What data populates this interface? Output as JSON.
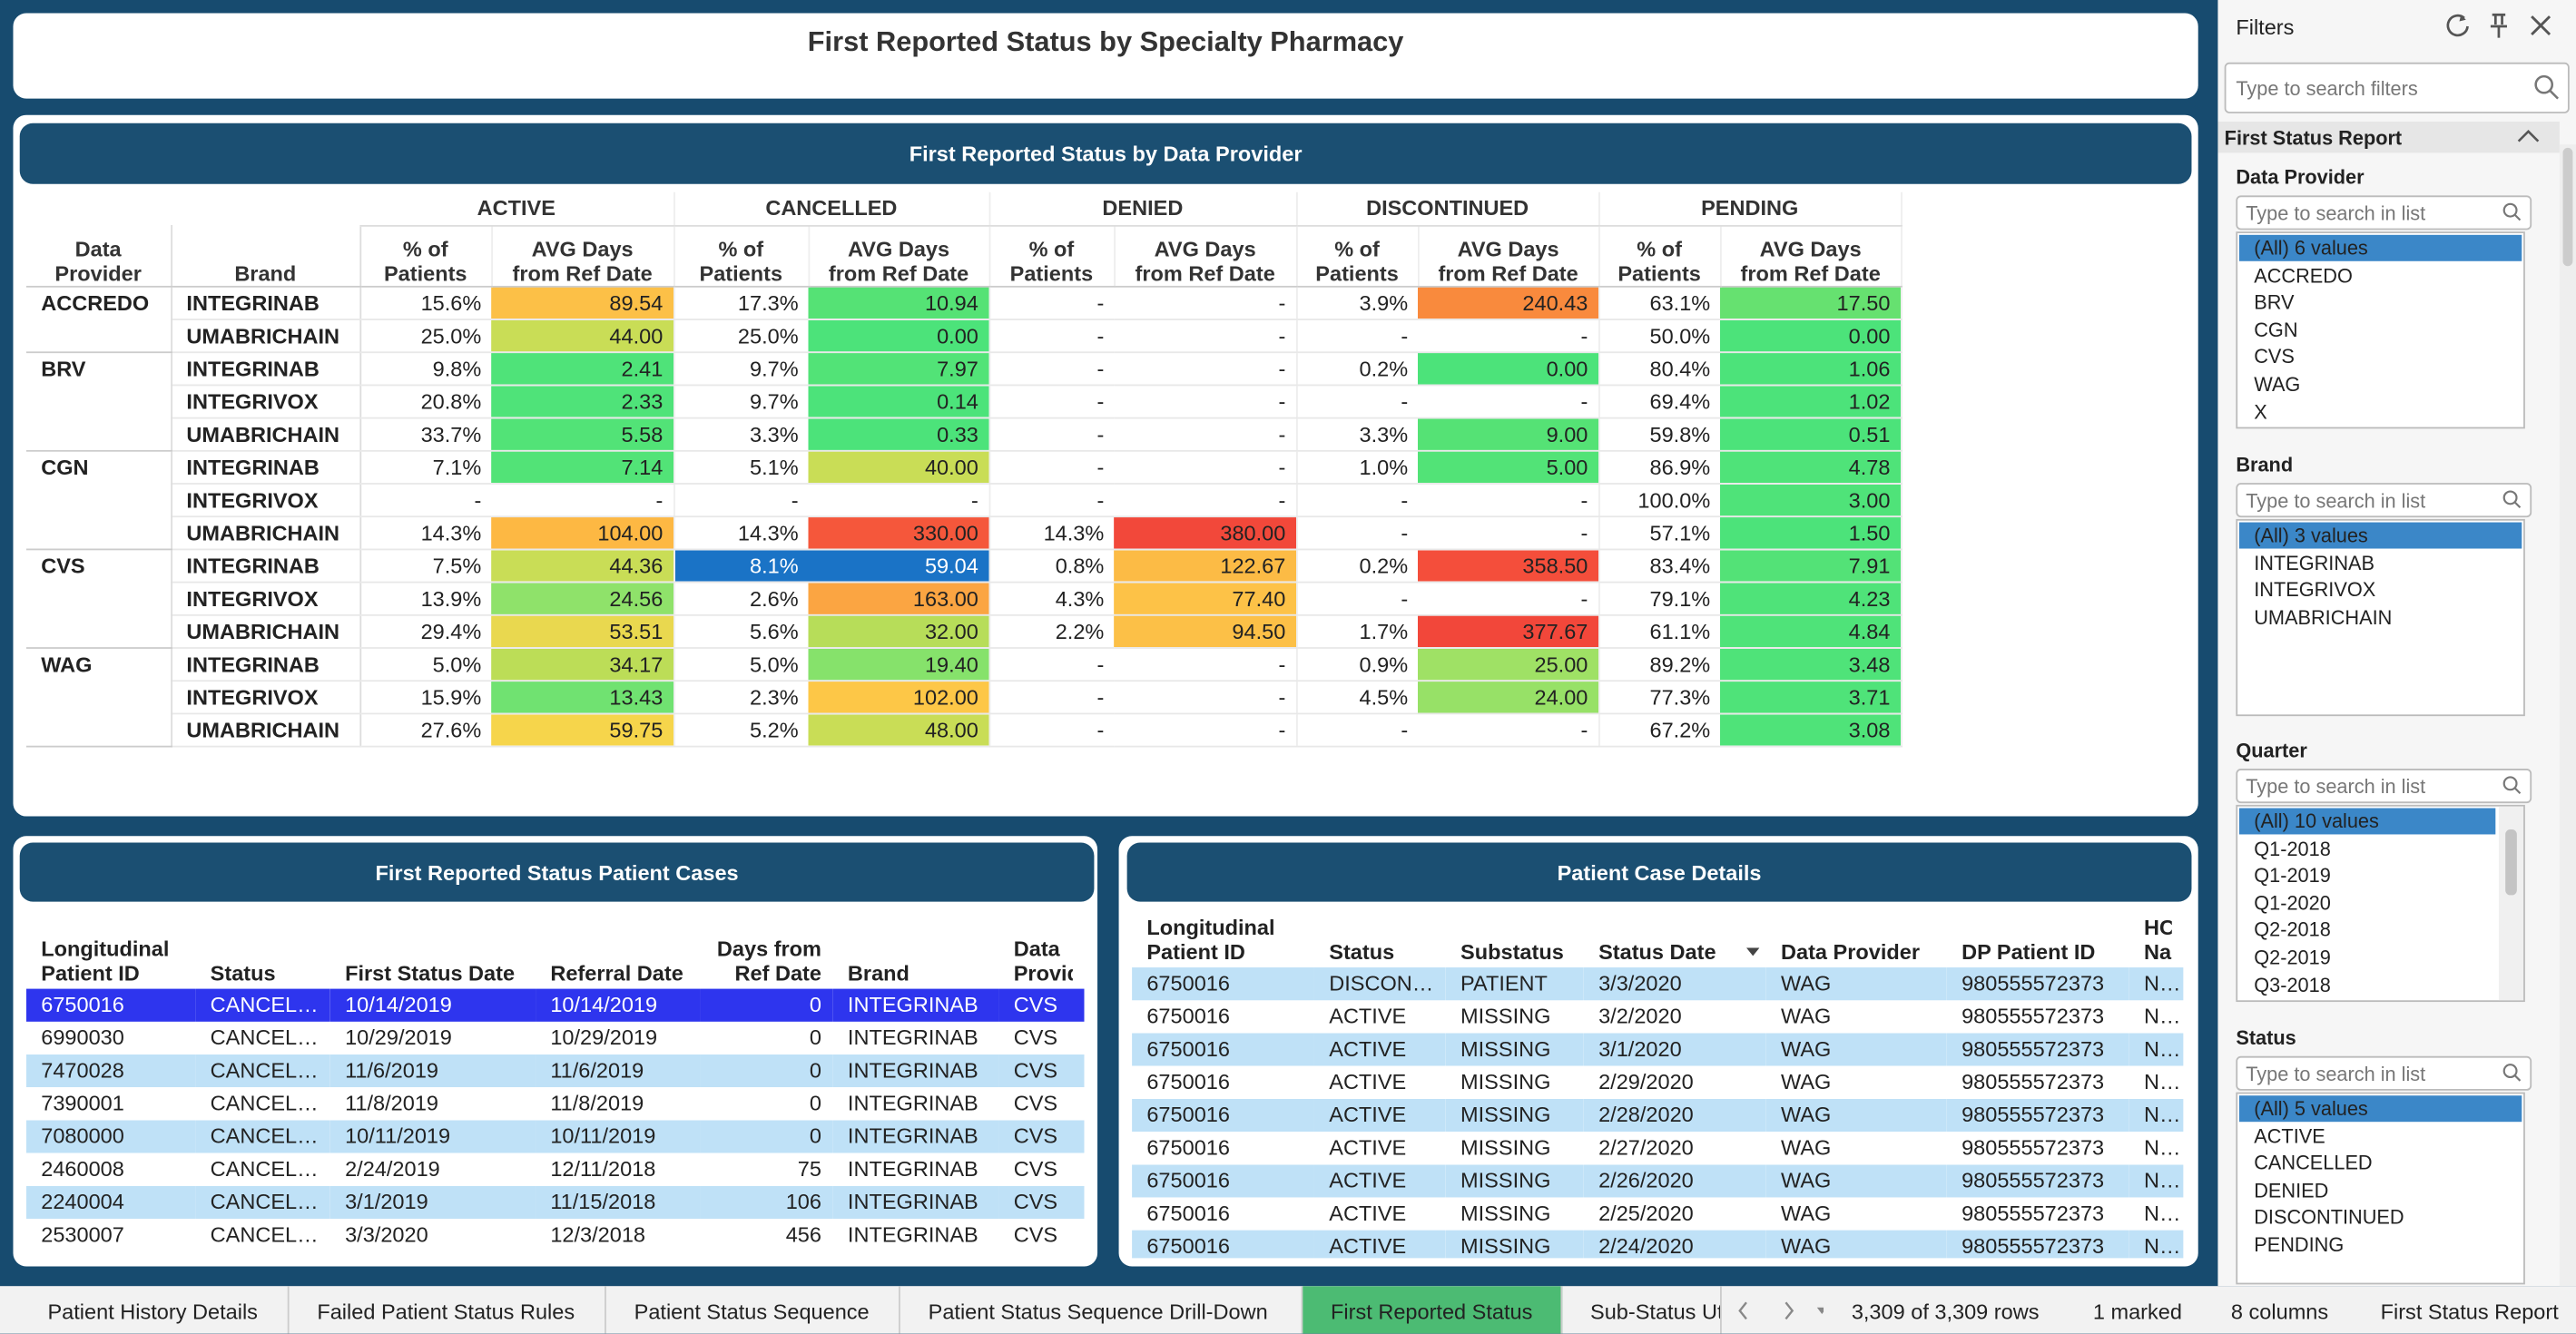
{
  "header": {
    "title": "First Reported Status by Specialty Pharmacy"
  },
  "pivot": {
    "title": "First Reported Status by Data Provider",
    "row_headers": [
      "Data Provider",
      "Brand"
    ],
    "statuses": [
      "ACTIVE",
      "CANCELLED",
      "DENIED",
      "DISCONTINUED",
      "PENDING"
    ],
    "measures": [
      "% of Patients",
      "AVG Days from Ref Date"
    ],
    "providers": [
      {
        "name": "ACCREDO",
        "rows": [
          {
            "brand": "INTEGRINAB",
            "cells": [
              "15.6%",
              "89.54",
              "17.3%",
              "10.94",
              "-",
              "-",
              "3.9%",
              "240.43",
              "63.1%",
              "17.50"
            ],
            "fills": [
              null,
              "#fcc047",
              null,
              "#55e275",
              null,
              null,
              null,
              "#f98a3d",
              null,
              "#66e170"
            ]
          },
          {
            "brand": "UMABRICHAIN",
            "cells": [
              "25.0%",
              "44.00",
              "25.0%",
              "0.00",
              "-",
              "-",
              "-",
              "-",
              "50.0%",
              "0.00"
            ],
            "fills": [
              null,
              "#c9dd56",
              null,
              "#4ce37a",
              null,
              null,
              null,
              null,
              null,
              "#4ce37a"
            ]
          }
        ]
      },
      {
        "name": "BRV",
        "rows": [
          {
            "brand": "INTEGRINAB",
            "cells": [
              "9.8%",
              "2.41",
              "9.7%",
              "7.97",
              "-",
              "-",
              "0.2%",
              "0.00",
              "80.4%",
              "1.06"
            ],
            "fills": [
              null,
              "#4fe379",
              null,
              "#52e377",
              null,
              null,
              null,
              "#4ce37a",
              null,
              "#4ce37a"
            ]
          },
          {
            "brand": "INTEGRIVOX",
            "cells": [
              "20.8%",
              "2.33",
              "9.7%",
              "0.14",
              "-",
              "-",
              "-",
              "-",
              "69.4%",
              "1.02"
            ],
            "fills": [
              null,
              "#4fe379",
              null,
              "#4ce37a",
              null,
              null,
              null,
              null,
              null,
              "#4ce37a"
            ]
          },
          {
            "brand": "UMABRICHAIN",
            "cells": [
              "33.7%",
              "5.58",
              "3.3%",
              "0.33",
              "-",
              "-",
              "3.3%",
              "9.00",
              "59.8%",
              "0.51"
            ],
            "fills": [
              null,
              "#52e377",
              null,
              "#4ce37a",
              null,
              null,
              null,
              "#55e275",
              null,
              "#4ce37a"
            ]
          }
        ]
      },
      {
        "name": "CGN",
        "rows": [
          {
            "brand": "INTEGRINAB",
            "cells": [
              "7.1%",
              "7.14",
              "5.1%",
              "40.00",
              "-",
              "-",
              "1.0%",
              "5.00",
              "86.9%",
              "4.78"
            ],
            "fills": [
              null,
              "#52e377",
              null,
              "#c9dd56",
              null,
              null,
              null,
              "#52e377",
              null,
              "#4fe379"
            ]
          },
          {
            "brand": "INTEGRIVOX",
            "cells": [
              "-",
              "-",
              "-",
              "-",
              "-",
              "-",
              "-",
              "-",
              "100.0%",
              "3.00"
            ],
            "fills": [
              null,
              null,
              null,
              null,
              null,
              null,
              null,
              null,
              null,
              "#4fe379"
            ]
          },
          {
            "brand": "UMABRICHAIN",
            "cells": [
              "14.3%",
              "104.00",
              "14.3%",
              "330.00",
              "14.3%",
              "380.00",
              "-",
              "-",
              "57.1%",
              "1.50"
            ],
            "fills": [
              null,
              "#fdb843",
              null,
              "#f5573b",
              null,
              "#f2483a",
              null,
              null,
              null,
              "#4ce37a"
            ]
          }
        ]
      },
      {
        "name": "CVS",
        "rows": [
          {
            "brand": "INTEGRINAB",
            "cells": [
              "7.5%",
              "44.36",
              "8.1%",
              "59.04",
              "0.8%",
              "122.67",
              "0.2%",
              "358.50",
              "83.4%",
              "7.91"
            ],
            "fills": [
              null,
              "#c9dd56",
              "#1a73c6",
              "#1a73c6",
              null,
              "#fcbb45",
              null,
              "#f44e3b",
              null,
              "#53e277"
            ],
            "selected_cells": [
              2,
              3
            ]
          },
          {
            "brand": "INTEGRIVOX",
            "cells": [
              "13.9%",
              "24.56",
              "2.6%",
              "163.00",
              "4.3%",
              "77.40",
              "-",
              "-",
              "79.1%",
              "4.23"
            ],
            "fills": [
              null,
              "#8fe26a",
              null,
              "#fba542",
              null,
              "#fdc247",
              null,
              null,
              null,
              "#4fe379"
            ]
          },
          {
            "brand": "UMABRICHAIN",
            "cells": [
              "29.4%",
              "53.51",
              "5.6%",
              "32.00",
              "2.2%",
              "94.50",
              "1.7%",
              "377.67",
              "61.1%",
              "4.84"
            ],
            "fills": [
              null,
              "#e9d84f",
              null,
              "#b7dd59",
              null,
              "#fcc047",
              null,
              "#f2473a",
              null,
              "#4fe379"
            ]
          }
        ]
      },
      {
        "name": "WAG",
        "rows": [
          {
            "brand": "INTEGRINAB",
            "cells": [
              "5.0%",
              "34.17",
              "5.0%",
              "19.40",
              "-",
              "-",
              "0.9%",
              "25.00",
              "89.2%",
              "3.48"
            ],
            "fills": [
              null,
              "#bcdd57",
              null,
              "#86e26b",
              null,
              null,
              null,
              "#9fe165",
              null,
              "#4fe379"
            ]
          },
          {
            "brand": "INTEGRIVOX",
            "cells": [
              "15.9%",
              "13.43",
              "2.3%",
              "102.00",
              "-",
              "-",
              "4.5%",
              "24.00",
              "77.3%",
              "3.71"
            ],
            "fills": [
              null,
              "#70e271",
              null,
              "#fdc747",
              null,
              null,
              null,
              "#97e167",
              null,
              "#4fe379"
            ]
          },
          {
            "brand": "UMABRICHAIN",
            "cells": [
              "27.6%",
              "59.75",
              "5.2%",
              "48.00",
              "-",
              "-",
              "-",
              "-",
              "67.2%",
              "3.08"
            ],
            "fills": [
              null,
              "#f6d54b",
              null,
              "#c9dd56",
              null,
              null,
              null,
              null,
              null,
              "#4fe379"
            ]
          }
        ]
      }
    ]
  },
  "cases": {
    "title": "First Reported Status Patient Cases",
    "columns": [
      "Longitudinal Patient ID",
      "Status",
      "First Status Date",
      "Referral Date",
      "Days from Ref Date",
      "Brand",
      "Data Provider"
    ],
    "rows": [
      [
        "6750016",
        "CANCELLED",
        "10/14/2019",
        "10/14/2019",
        "0",
        "INTEGRINAB",
        "CVS"
      ],
      [
        "6990030",
        "CANCELLED",
        "10/29/2019",
        "10/29/2019",
        "0",
        "INTEGRINAB",
        "CVS"
      ],
      [
        "7470028",
        "CANCELLED",
        "11/6/2019",
        "11/6/2019",
        "0",
        "INTEGRINAB",
        "CVS"
      ],
      [
        "7390001",
        "CANCELLED",
        "11/8/2019",
        "11/8/2019",
        "0",
        "INTEGRINAB",
        "CVS"
      ],
      [
        "7080000",
        "CANCELLED",
        "10/11/2019",
        "10/11/2019",
        "0",
        "INTEGRINAB",
        "CVS"
      ],
      [
        "2460008",
        "CANCELLED",
        "2/24/2019",
        "12/11/2018",
        "75",
        "INTEGRINAB",
        "CVS"
      ],
      [
        "2240004",
        "CANCELLED",
        "3/1/2019",
        "11/15/2018",
        "106",
        "INTEGRINAB",
        "CVS"
      ],
      [
        "2530007",
        "CANCELLED",
        "3/3/2020",
        "12/3/2018",
        "456",
        "INTEGRINAB",
        "CVS"
      ]
    ],
    "selected_row": 0
  },
  "details": {
    "title": "Patient Case Details",
    "columns": [
      "Longitudinal Patient ID",
      "Status",
      "Substatus",
      "Status Date",
      "Data Provider",
      "DP Patient ID",
      "HCP Name"
    ],
    "rows": [
      [
        "6750016",
        "DISCONTINUED",
        "PATIENT",
        "3/3/2020",
        "WAG",
        "980555572373",
        "NIC"
      ],
      [
        "6750016",
        "ACTIVE",
        "MISSING",
        "3/2/2020",
        "WAG",
        "980555572373",
        "NIC"
      ],
      [
        "6750016",
        "ACTIVE",
        "MISSING",
        "3/1/2020",
        "WAG",
        "980555572373",
        "NIC"
      ],
      [
        "6750016",
        "ACTIVE",
        "MISSING",
        "2/29/2020",
        "WAG",
        "980555572373",
        "NIC"
      ],
      [
        "6750016",
        "ACTIVE",
        "MISSING",
        "2/28/2020",
        "WAG",
        "980555572373",
        "NIC"
      ],
      [
        "6750016",
        "ACTIVE",
        "MISSING",
        "2/27/2020",
        "WAG",
        "980555572373",
        "NIC"
      ],
      [
        "6750016",
        "ACTIVE",
        "MISSING",
        "2/26/2020",
        "WAG",
        "980555572373",
        "NIC"
      ],
      [
        "6750016",
        "ACTIVE",
        "MISSING",
        "2/25/2020",
        "WAG",
        "980555572373",
        "NIC"
      ],
      [
        "6750016",
        "ACTIVE",
        "MISSING",
        "2/24/2020",
        "WAG",
        "980555572373",
        "NIC"
      ]
    ]
  },
  "filters": {
    "title": "Filters",
    "search": "Type to search filters",
    "section": "First Status Report",
    "list_search": "Type to search in list",
    "groups": [
      {
        "label": "Data Provider",
        "items": [
          "(All) 6 values",
          "ACCREDO",
          "BRV",
          "CGN",
          "CVS",
          "WAG",
          "X"
        ]
      },
      {
        "label": "Brand",
        "items": [
          "(All) 3 values",
          "INTEGRINAB",
          "INTEGRIVOX",
          "UMABRICHAIN"
        ]
      },
      {
        "label": "Quarter",
        "items": [
          "(All) 10 values",
          "Q1-2018",
          "Q1-2019",
          "Q1-2020",
          "Q2-2018",
          "Q2-2019",
          "Q3-2018"
        ]
      },
      {
        "label": "Status",
        "items": [
          "(All) 5 values",
          "ACTIVE",
          "CANCELLED",
          "DENIED",
          "DISCONTINUED",
          "PENDING"
        ]
      }
    ]
  },
  "tabs": {
    "items": [
      "Patient History Details",
      "Failed Patient Status Rules",
      "Patient Status Sequence",
      "Patient Status Sequence Drill-Down",
      "First Reported Status",
      "Sub-Status Ut"
    ],
    "active": 4
  },
  "status_bar": [
    "3,309 of 3,309 rows",
    "1 marked",
    "8 columns",
    "First Status Report"
  ]
}
